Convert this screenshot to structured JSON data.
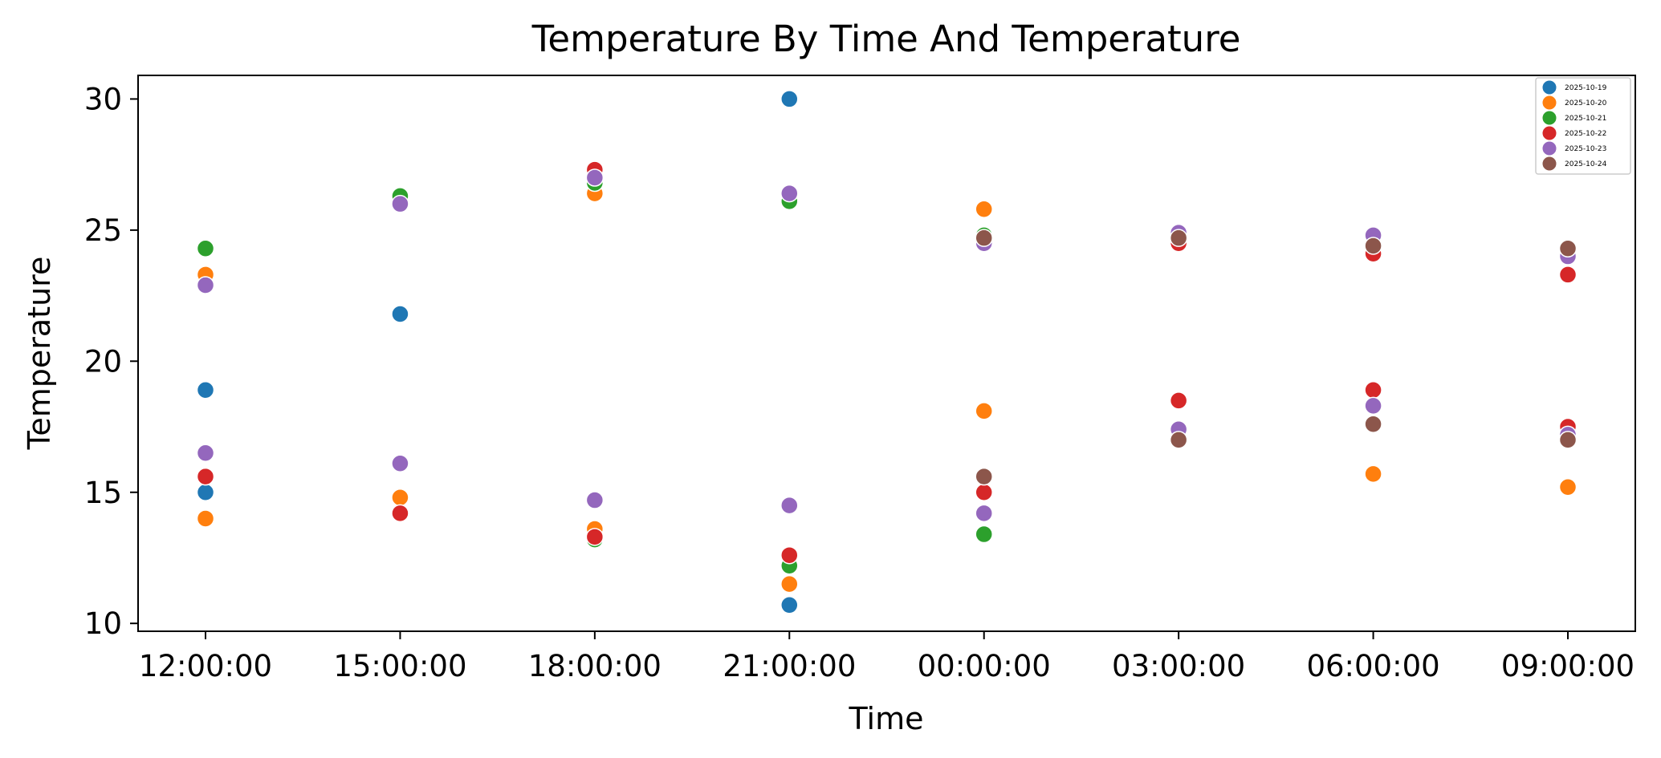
{
  "chart_data": {
    "type": "scatter",
    "title": "Temperature By Time And Temperature",
    "xlabel": "Time",
    "ylabel": "Temperature",
    "categories": [
      "12:00:00",
      "15:00:00",
      "18:00:00",
      "21:00:00",
      "00:00:00",
      "03:00:00",
      "06:00:00",
      "09:00:00"
    ],
    "ylim": [
      9.7,
      30.9
    ],
    "yticks": [
      10,
      15,
      20,
      25,
      30
    ],
    "grid": false,
    "legend_position": "top-right",
    "series": [
      {
        "name": "2025-10-19",
        "color": "#1f77b4",
        "points": [
          {
            "x": "12:00:00",
            "y": 18.9
          },
          {
            "x": "12:00:00",
            "y": 15.0
          },
          {
            "x": "15:00:00",
            "y": 21.8
          },
          {
            "x": "21:00:00",
            "y": 30.0
          },
          {
            "x": "21:00:00",
            "y": 10.7
          }
        ]
      },
      {
        "name": "2025-10-20",
        "color": "#ff7f0e",
        "points": [
          {
            "x": "12:00:00",
            "y": 23.3
          },
          {
            "x": "12:00:00",
            "y": 14.0
          },
          {
            "x": "15:00:00",
            "y": 14.8
          },
          {
            "x": "18:00:00",
            "y": 26.4
          },
          {
            "x": "18:00:00",
            "y": 13.6
          },
          {
            "x": "21:00:00",
            "y": 11.5
          },
          {
            "x": "00:00:00",
            "y": 25.8
          },
          {
            "x": "00:00:00",
            "y": 18.1
          },
          {
            "x": "06:00:00",
            "y": 15.7
          },
          {
            "x": "09:00:00",
            "y": 15.2
          }
        ]
      },
      {
        "name": "2025-10-21",
        "color": "#2ca02c",
        "points": [
          {
            "x": "12:00:00",
            "y": 24.3
          },
          {
            "x": "15:00:00",
            "y": 26.3
          },
          {
            "x": "18:00:00",
            "y": 26.8
          },
          {
            "x": "18:00:00",
            "y": 13.2
          },
          {
            "x": "21:00:00",
            "y": 26.1
          },
          {
            "x": "21:00:00",
            "y": 12.2
          },
          {
            "x": "00:00:00",
            "y": 24.8
          },
          {
            "x": "00:00:00",
            "y": 13.4
          }
        ]
      },
      {
        "name": "2025-10-22",
        "color": "#d62728",
        "points": [
          {
            "x": "12:00:00",
            "y": 15.6
          },
          {
            "x": "15:00:00",
            "y": 14.2
          },
          {
            "x": "18:00:00",
            "y": 27.3
          },
          {
            "x": "18:00:00",
            "y": 13.3
          },
          {
            "x": "21:00:00",
            "y": 12.6
          },
          {
            "x": "00:00:00",
            "y": 15.0
          },
          {
            "x": "03:00:00",
            "y": 24.5
          },
          {
            "x": "03:00:00",
            "y": 18.5
          },
          {
            "x": "06:00:00",
            "y": 24.1
          },
          {
            "x": "06:00:00",
            "y": 18.9
          },
          {
            "x": "09:00:00",
            "y": 23.3
          },
          {
            "x": "09:00:00",
            "y": 17.5
          }
        ]
      },
      {
        "name": "2025-10-23",
        "color": "#9467bd",
        "points": [
          {
            "x": "12:00:00",
            "y": 22.9
          },
          {
            "x": "12:00:00",
            "y": 16.5
          },
          {
            "x": "15:00:00",
            "y": 26.0
          },
          {
            "x": "15:00:00",
            "y": 16.1
          },
          {
            "x": "18:00:00",
            "y": 27.0
          },
          {
            "x": "18:00:00",
            "y": 14.7
          },
          {
            "x": "21:00:00",
            "y": 26.4
          },
          {
            "x": "21:00:00",
            "y": 14.5
          },
          {
            "x": "00:00:00",
            "y": 24.5
          },
          {
            "x": "00:00:00",
            "y": 14.2
          },
          {
            "x": "03:00:00",
            "y": 24.9
          },
          {
            "x": "03:00:00",
            "y": 17.4
          },
          {
            "x": "06:00:00",
            "y": 24.8
          },
          {
            "x": "06:00:00",
            "y": 18.3
          },
          {
            "x": "09:00:00",
            "y": 24.0
          },
          {
            "x": "09:00:00",
            "y": 17.2
          }
        ]
      },
      {
        "name": "2025-10-24",
        "color": "#8c564b",
        "points": [
          {
            "x": "00:00:00",
            "y": 24.7
          },
          {
            "x": "00:00:00",
            "y": 15.6
          },
          {
            "x": "03:00:00",
            "y": 24.7
          },
          {
            "x": "03:00:00",
            "y": 17.0
          },
          {
            "x": "06:00:00",
            "y": 24.4
          },
          {
            "x": "06:00:00",
            "y": 17.6
          },
          {
            "x": "09:00:00",
            "y": 24.3
          },
          {
            "x": "09:00:00",
            "y": 17.0
          }
        ]
      }
    ]
  }
}
